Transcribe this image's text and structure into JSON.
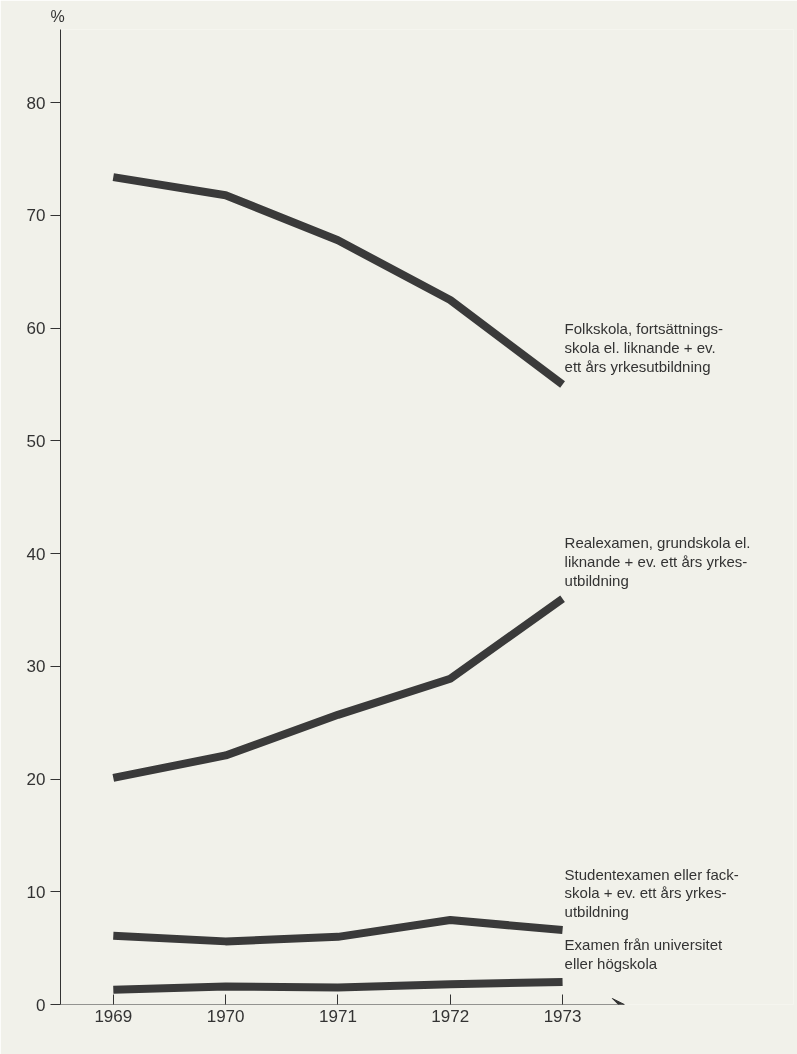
{
  "chart_data": {
    "type": "line",
    "ylabel": "%",
    "x": [
      1969,
      1970,
      1971,
      1972,
      1973
    ],
    "xlim": [
      1968.53,
      1973.55
    ],
    "xticks": [
      1969,
      1970,
      1971,
      1972,
      1973
    ],
    "ylim": [
      0,
      86.5
    ],
    "yticks": [
      0,
      10,
      20,
      30,
      40,
      50,
      60,
      70,
      80
    ],
    "grid": false,
    "marker": "none",
    "line_style": "solid",
    "series": [
      {
        "name": "Folkskola, fortsättnings-\nskola el. liknande + ev.\nett års yrkesutbildning",
        "color": "#3a3a3a",
        "values": [
          73.4,
          71.8,
          67.8,
          62.5,
          55.0
        ]
      },
      {
        "name": "Realexamen, grundskola el.\nliknande + ev. ett års yrkes-\nutbildning",
        "color": "#3a3a3a",
        "values": [
          20.1,
          22.1,
          25.7,
          28.9,
          36.0
        ]
      },
      {
        "name": "Studentexamen eller fack-\nskola + ev. ett års yrkes-\nutbildning",
        "color": "#3a3a3a",
        "values": [
          6.1,
          5.6,
          6.0,
          7.5,
          6.6
        ]
      },
      {
        "name": "Examen från universitet\neller högskola",
        "color": "#3a3a3a",
        "values": [
          1.3,
          1.6,
          1.5,
          1.8,
          2.0
        ]
      }
    ]
  }
}
